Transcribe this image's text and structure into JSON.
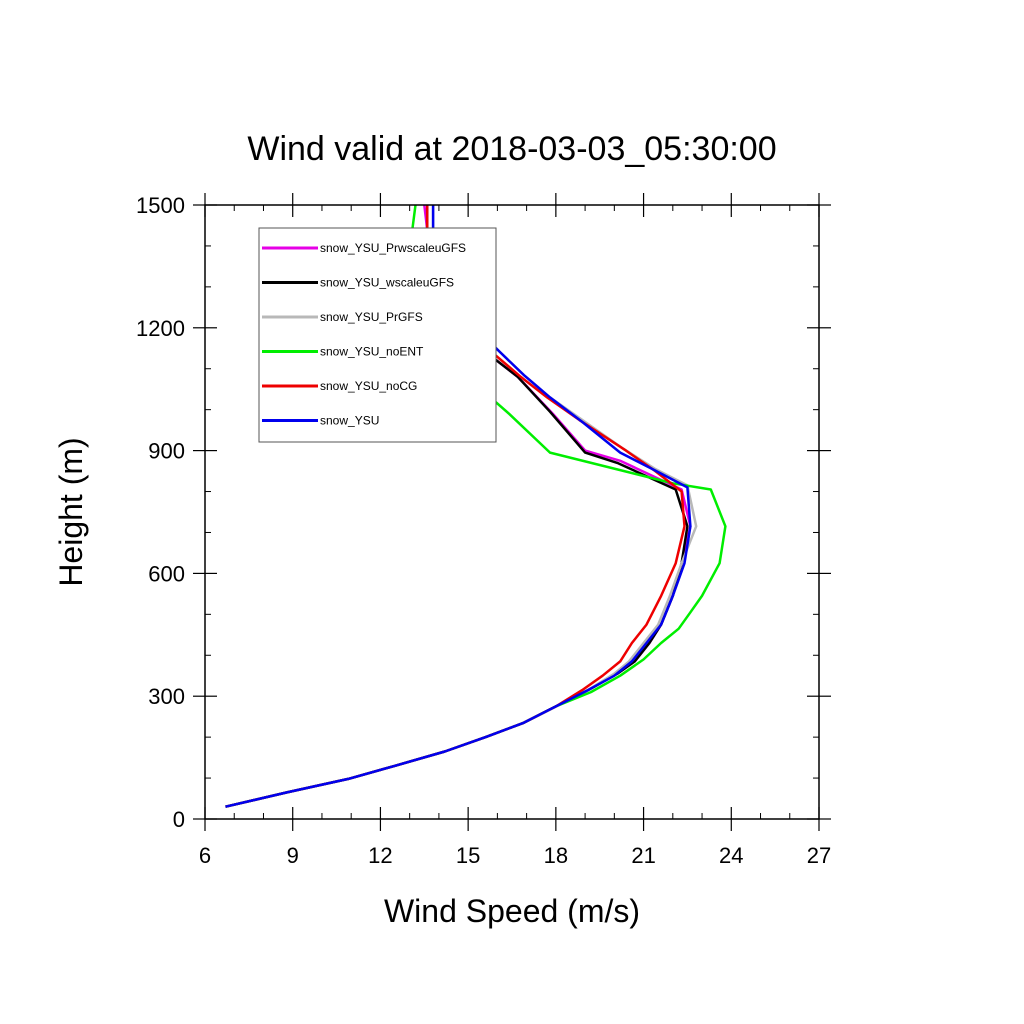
{
  "chart_data": {
    "type": "line",
    "title": "Wind valid at 2018-03-03_05:30:00",
    "xlabel": "Wind Speed (m/s)",
    "ylabel": "Height (m)",
    "xlim": [
      6,
      27
    ],
    "ylim": [
      0,
      1500
    ],
    "xticks": [
      6,
      9,
      12,
      15,
      18,
      21,
      24,
      27
    ],
    "yticks": [
      0,
      300,
      600,
      900,
      1200,
      1500
    ],
    "x_minor_step": 1,
    "y_minor_step": 100,
    "grid": false,
    "legend_placement": "top-left",
    "series": [
      {
        "name": "snow_YSU_PrwscaleuGFS",
        "color": "#e600e6",
        "points": [
          [
            6.7,
            30
          ],
          [
            8.8,
            65
          ],
          [
            10.9,
            98
          ],
          [
            12.5,
            130
          ],
          [
            14.2,
            165
          ],
          [
            15.6,
            200
          ],
          [
            16.9,
            235
          ],
          [
            18.0,
            275
          ],
          [
            19.1,
            315
          ],
          [
            20.1,
            355
          ],
          [
            20.7,
            385
          ],
          [
            21.2,
            430
          ],
          [
            21.6,
            475
          ],
          [
            22.0,
            545
          ],
          [
            22.3,
            625
          ],
          [
            22.6,
            715
          ],
          [
            22.3,
            805
          ],
          [
            20.2,
            875
          ],
          [
            19.0,
            900
          ],
          [
            17.9,
            990
          ],
          [
            16.7,
            1080
          ],
          [
            15.8,
            1130
          ],
          [
            14.9,
            1190
          ],
          [
            14.3,
            1250
          ],
          [
            13.9,
            1300
          ],
          [
            13.7,
            1380
          ],
          [
            13.6,
            1440
          ],
          [
            13.5,
            1500
          ]
        ]
      },
      {
        "name": "snow_YSU_wscaleuGFS",
        "color": "#000000",
        "points": [
          [
            6.7,
            30
          ],
          [
            8.8,
            65
          ],
          [
            10.9,
            98
          ],
          [
            12.5,
            130
          ],
          [
            14.2,
            165
          ],
          [
            15.6,
            200
          ],
          [
            16.9,
            235
          ],
          [
            18.0,
            275
          ],
          [
            19.1,
            315
          ],
          [
            20.1,
            355
          ],
          [
            20.7,
            385
          ],
          [
            21.2,
            430
          ],
          [
            21.6,
            475
          ],
          [
            22.0,
            545
          ],
          [
            22.3,
            625
          ],
          [
            22.5,
            715
          ],
          [
            22.1,
            805
          ],
          [
            20.1,
            870
          ],
          [
            19.0,
            895
          ],
          [
            17.8,
            995
          ],
          [
            16.7,
            1080
          ],
          [
            15.8,
            1130
          ],
          [
            14.9,
            1190
          ],
          [
            14.3,
            1250
          ],
          [
            13.8,
            1300
          ],
          [
            13.7,
            1380
          ],
          [
            13.6,
            1440
          ],
          [
            13.6,
            1500
          ]
        ]
      },
      {
        "name": "snow_YSU_PrGFS",
        "color": "#b8b8b8",
        "points": [
          [
            6.7,
            30
          ],
          [
            8.8,
            65
          ],
          [
            10.9,
            98
          ],
          [
            12.5,
            130
          ],
          [
            14.2,
            165
          ],
          [
            15.6,
            200
          ],
          [
            16.9,
            235
          ],
          [
            18.0,
            275
          ],
          [
            19.1,
            315
          ],
          [
            20.0,
            355
          ],
          [
            20.5,
            385
          ],
          [
            21.0,
            430
          ],
          [
            21.5,
            475
          ],
          [
            21.9,
            545
          ],
          [
            22.3,
            625
          ],
          [
            22.8,
            715
          ],
          [
            22.5,
            815
          ],
          [
            21.4,
            855
          ],
          [
            20.3,
            905
          ],
          [
            18.9,
            975
          ],
          [
            17.8,
            1030
          ],
          [
            16.9,
            1085
          ],
          [
            16.1,
            1140
          ],
          [
            15.3,
            1200
          ],
          [
            14.6,
            1260
          ],
          [
            14.0,
            1320
          ],
          [
            13.8,
            1400
          ],
          [
            13.8,
            1500
          ]
        ]
      },
      {
        "name": "snow_YSU_noENT",
        "color": "#00ee00",
        "points": [
          [
            6.7,
            30
          ],
          [
            8.8,
            65
          ],
          [
            10.9,
            98
          ],
          [
            12.5,
            130
          ],
          [
            14.2,
            165
          ],
          [
            15.6,
            200
          ],
          [
            16.9,
            235
          ],
          [
            18.0,
            275
          ],
          [
            19.2,
            310
          ],
          [
            20.2,
            350
          ],
          [
            21.0,
            390
          ],
          [
            21.6,
            430
          ],
          [
            22.2,
            465
          ],
          [
            22.6,
            505
          ],
          [
            23.0,
            545
          ],
          [
            23.6,
            625
          ],
          [
            23.8,
            715
          ],
          [
            23.3,
            805
          ],
          [
            22.0,
            820
          ],
          [
            17.8,
            895
          ],
          [
            16.4,
            990
          ],
          [
            14.8,
            1090
          ],
          [
            13.3,
            1190
          ],
          [
            12.9,
            1290
          ],
          [
            13.0,
            1390
          ],
          [
            13.2,
            1500
          ]
        ]
      },
      {
        "name": "snow_YSU_noCG",
        "color": "#ee0000",
        "points": [
          [
            6.7,
            30
          ],
          [
            8.8,
            65
          ],
          [
            10.9,
            98
          ],
          [
            12.5,
            130
          ],
          [
            14.2,
            165
          ],
          [
            15.6,
            200
          ],
          [
            16.9,
            235
          ],
          [
            18.0,
            275
          ],
          [
            18.9,
            315
          ],
          [
            19.6,
            350
          ],
          [
            20.2,
            385
          ],
          [
            20.6,
            430
          ],
          [
            21.1,
            475
          ],
          [
            21.6,
            545
          ],
          [
            22.1,
            625
          ],
          [
            22.4,
            715
          ],
          [
            22.3,
            800
          ],
          [
            21.4,
            850
          ],
          [
            20.4,
            900
          ],
          [
            18.8,
            975
          ],
          [
            17.7,
            1030
          ],
          [
            16.8,
            1080
          ],
          [
            15.9,
            1135
          ],
          [
            15.1,
            1190
          ],
          [
            14.4,
            1245
          ],
          [
            13.9,
            1300
          ],
          [
            13.7,
            1380
          ],
          [
            13.6,
            1440
          ],
          [
            13.6,
            1500
          ]
        ]
      },
      {
        "name": "snow_YSU",
        "color": "#0000ee",
        "points": [
          [
            6.7,
            30
          ],
          [
            8.8,
            65
          ],
          [
            10.9,
            98
          ],
          [
            12.5,
            130
          ],
          [
            14.2,
            165
          ],
          [
            15.6,
            200
          ],
          [
            16.9,
            235
          ],
          [
            18.0,
            275
          ],
          [
            19.1,
            315
          ],
          [
            20.0,
            350
          ],
          [
            20.6,
            385
          ],
          [
            21.1,
            430
          ],
          [
            21.6,
            475
          ],
          [
            22.0,
            545
          ],
          [
            22.4,
            625
          ],
          [
            22.6,
            715
          ],
          [
            22.5,
            810
          ],
          [
            21.3,
            855
          ],
          [
            20.2,
            895
          ],
          [
            18.9,
            970
          ],
          [
            17.8,
            1030
          ],
          [
            16.9,
            1085
          ],
          [
            16.1,
            1140
          ],
          [
            15.3,
            1195
          ],
          [
            14.6,
            1250
          ],
          [
            14.1,
            1300
          ],
          [
            13.8,
            1380
          ],
          [
            13.8,
            1500
          ]
        ]
      }
    ]
  }
}
